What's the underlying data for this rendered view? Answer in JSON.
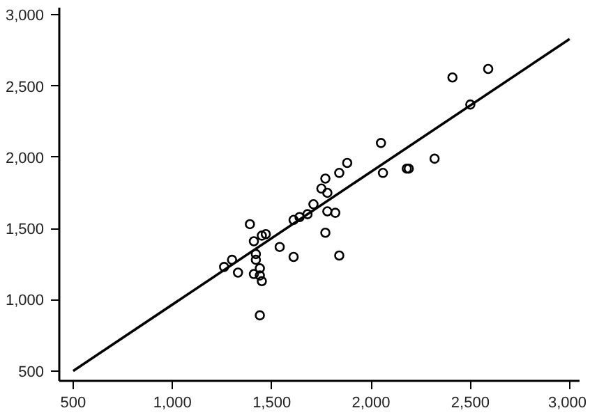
{
  "chart_data": {
    "type": "scatter",
    "grid": false,
    "xlim": [
      430,
      3050
    ],
    "ylim": [
      430,
      3050
    ],
    "xticks": [
      {
        "value": 500,
        "label": "500"
      },
      {
        "value": 1000,
        "label": "1,000"
      },
      {
        "value": 1500,
        "label": "1,500"
      },
      {
        "value": 2000,
        "label": "2,000"
      },
      {
        "value": 2500,
        "label": "2,500"
      },
      {
        "value": 3000,
        "label": "3,000"
      }
    ],
    "yticks": [
      {
        "value": 500,
        "label": "500"
      },
      {
        "value": 1000,
        "label": "1,000"
      },
      {
        "value": 1500,
        "label": "1,500"
      },
      {
        "value": 2000,
        "label": "2,000"
      },
      {
        "value": 2500,
        "label": "2,500"
      },
      {
        "value": 3000,
        "label": "3,000"
      }
    ],
    "series": [
      {
        "marker": "circle",
        "color": "#000000",
        "x": [
          2590,
          2410,
          2500,
          2050,
          2320,
          2060,
          2190,
          2180,
          1880,
          1840,
          1770,
          1750,
          1780,
          1710,
          1780,
          1820,
          1680,
          1640,
          1610,
          1390,
          1770,
          1840,
          1450,
          1470,
          1410,
          1540,
          1610,
          1420,
          1420,
          1300,
          1260,
          1330,
          1410,
          1440,
          1440,
          1450,
          1440
        ],
        "values": [
          2620,
          2560,
          2370,
          2100,
          1990,
          1890,
          1920,
          1920,
          1960,
          1890,
          1850,
          1780,
          1750,
          1670,
          1620,
          1610,
          1600,
          1580,
          1560,
          1530,
          1470,
          1310,
          1450,
          1460,
          1410,
          1370,
          1300,
          1320,
          1280,
          1280,
          1230,
          1190,
          1180,
          1220,
          1170,
          1130,
          890
        ]
      },
      {
        "type": "line",
        "color": "#000000",
        "x": [
          500,
          3000
        ],
        "values": [
          500,
          2830
        ]
      }
    ]
  }
}
